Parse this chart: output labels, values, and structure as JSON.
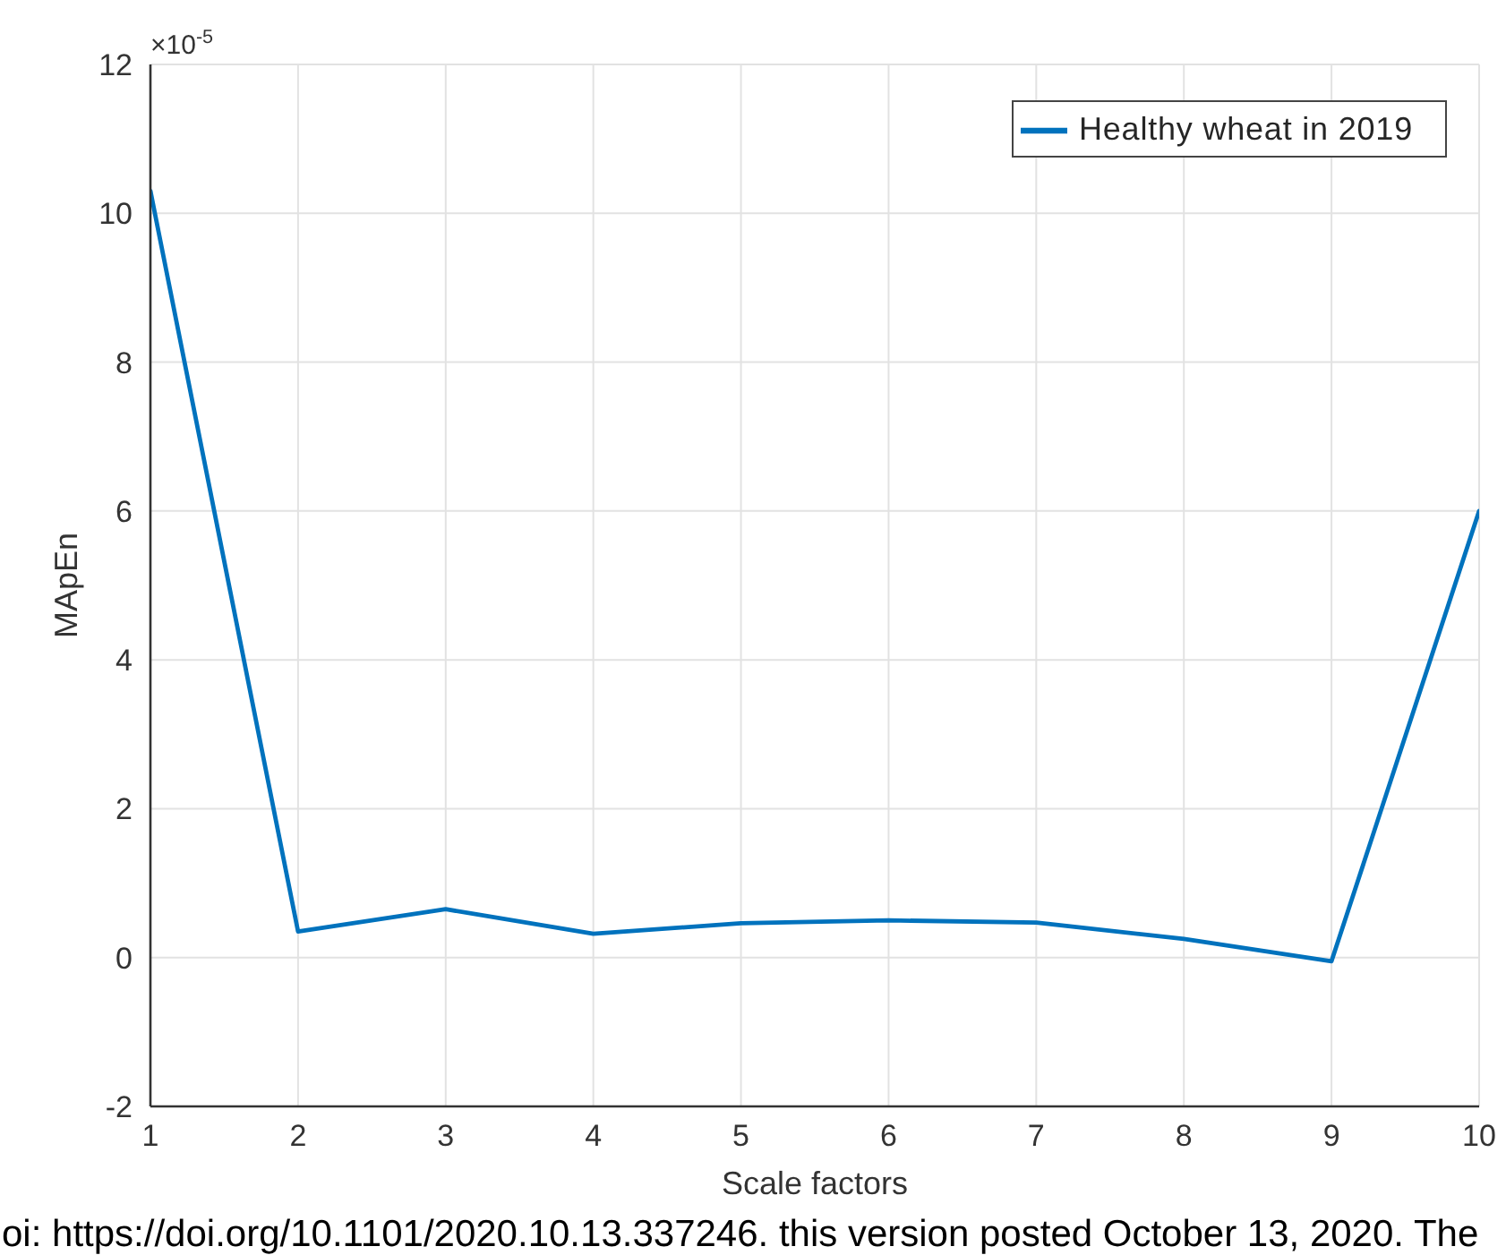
{
  "chart_data": {
    "type": "line",
    "xlabel": "Scale factors",
    "ylabel": "MApEn",
    "annotations": [
      "×10$^{-5}$",
      "oi: https://doi.org/10.1101/2020.10.13.337246. this version posted October 13, 2020. The"
    ],
    "x": [
      1,
      2,
      3,
      4,
      5,
      6,
      7,
      8,
      9,
      10
    ],
    "series": [
      {
        "name": "Healthy wheat in 2019",
        "color": "#0072bd",
        "values": [
          10.3,
          0.35,
          0.65,
          0.32,
          0.46,
          0.5,
          0.47,
          0.25,
          -0.05,
          6.0
        ]
      }
    ],
    "xlim": [
      1,
      10
    ],
    "ylim": [
      -2,
      12
    ],
    "xticks": [
      1,
      2,
      3,
      4,
      5,
      6,
      7,
      8,
      9,
      10
    ],
    "yticks": [
      -2,
      0,
      2,
      4,
      6,
      8,
      10,
      12
    ],
    "grid": true,
    "legend": "top right"
  }
}
